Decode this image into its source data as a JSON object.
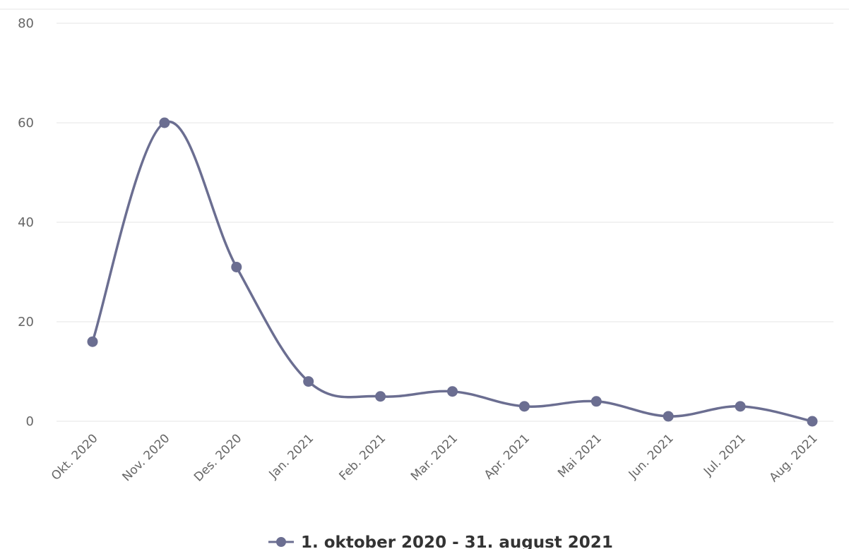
{
  "chart_data": {
    "type": "line",
    "smooth": true,
    "categories": [
      "Okt. 2020",
      "Nov. 2020",
      "Des. 2020",
      "Jan. 2021",
      "Feb. 2021",
      "Mar. 2021",
      "Apr. 2021",
      "Mai 2021",
      "Jun. 2021",
      "Jul. 2021",
      "Aug. 2021"
    ],
    "series": [
      {
        "name": "1. oktober 2020 - 31. august 2021",
        "color": "#6b6e91",
        "values": [
          16,
          60,
          31,
          8,
          5,
          6,
          3,
          4,
          1,
          3,
          0
        ]
      }
    ],
    "yticks": [
      0,
      20,
      40,
      60,
      80
    ],
    "ylim": [
      0,
      80
    ],
    "grid": true,
    "legend": "bottom-center"
  }
}
